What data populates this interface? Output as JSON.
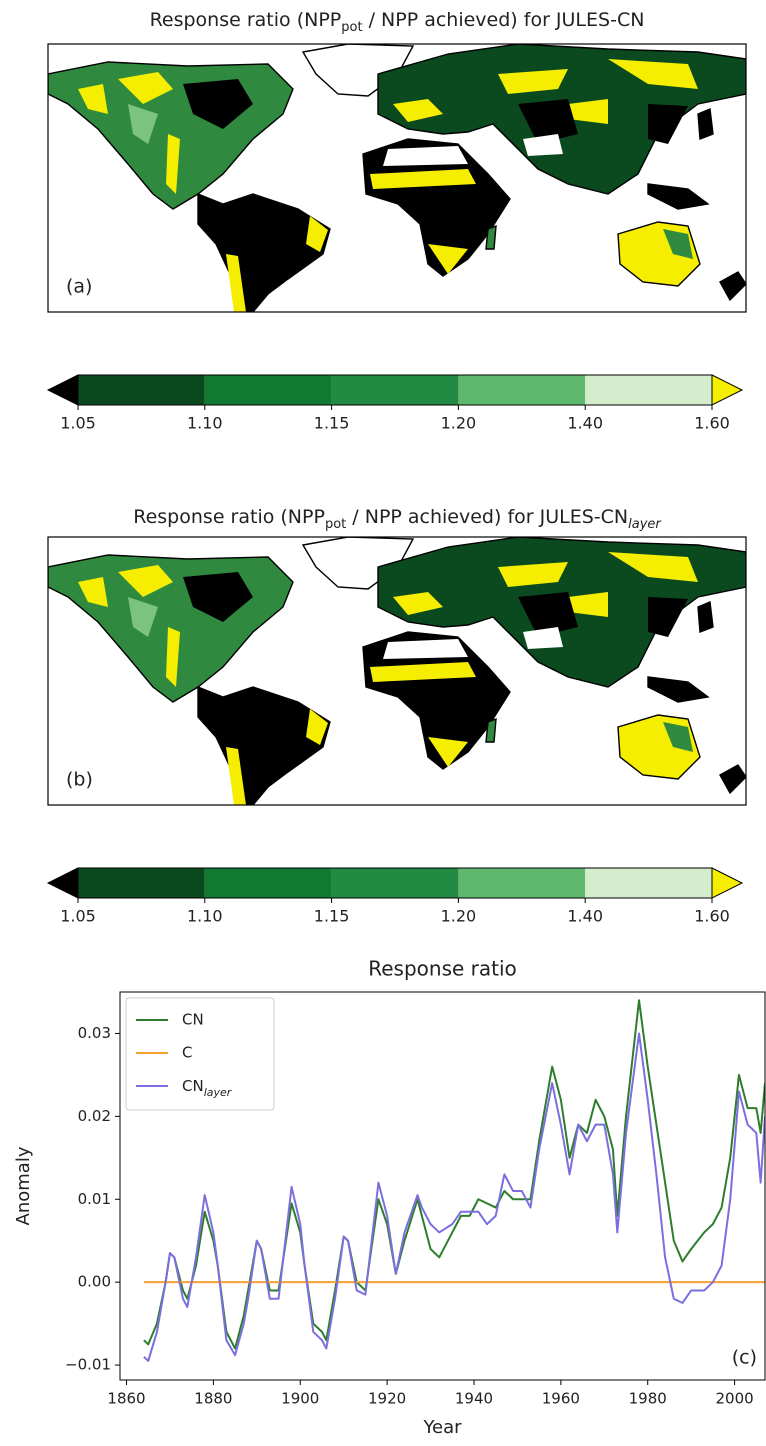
{
  "chart_data": [
    {
      "type": "map",
      "title": [
        "Response ratio (NPP",
        "pot",
        " / NPP achieved) for JULES-CN"
      ],
      "label": "(a)"
    },
    {
      "type": "colorbar",
      "ticks": [
        1.05,
        {
          "value": 1.1,
          "label": "1.10"
        },
        1.15,
        {
          "value": 1.2,
          "label": "1.20"
        },
        {
          "value": 1.4,
          "label": "1.40"
        },
        {
          "value": 1.6,
          "label": "1.60"
        }
      ],
      "colors": [
        "#0b4a1f",
        "#107a32",
        "#238a43",
        "#5fb96c",
        "#d3edcd"
      ],
      "under": "#000000",
      "over": "#f5ee00"
    },
    {
      "type": "map",
      "title": [
        "Response ratio (NPP",
        "pot",
        " / NPP achieved) for JULES-CN",
        "layer"
      ],
      "label": "(b)"
    },
    {
      "type": "colorbar",
      "ticks": [
        1.05,
        {
          "value": 1.1,
          "label": "1.10"
        },
        1.15,
        {
          "value": 1.2,
          "label": "1.20"
        },
        {
          "value": 1.4,
          "label": "1.40"
        },
        {
          "value": 1.6,
          "label": "1.60"
        }
      ],
      "colors": [
        "#0b4a1f",
        "#107a32",
        "#238a43",
        "#5fb96c",
        "#d3edcd"
      ],
      "under": "#000000",
      "over": "#f5ee00"
    },
    {
      "type": "line",
      "title": "Response ratio",
      "xlabel": "Year",
      "ylabel": "Anomaly",
      "annotation": "(c)",
      "legend": "upper left",
      "xlim": [
        1858.5,
        2007
      ],
      "xticks": [
        1860,
        1880,
        1900,
        1920,
        1940,
        1960,
        1980,
        2000
      ],
      "ylim": [
        -0.0118,
        0.035
      ],
      "yticks": [
        {
          "value": -0.01,
          "label": "−0.01"
        },
        {
          "value": 0,
          "label": "0.00"
        },
        0.01,
        0.02,
        0.03
      ],
      "x": [
        1864,
        1865,
        1867,
        1869,
        1870,
        1871,
        1873,
        1874,
        1876,
        1878,
        1880,
        1881,
        1883,
        1885,
        1887,
        1888,
        1890,
        1891,
        1893,
        1895,
        1898,
        1900,
        1901,
        1903,
        1905,
        1906,
        1908,
        1910,
        1911,
        1913,
        1915,
        1918,
        1920,
        1922,
        1924,
        1927,
        1928,
        1930,
        1932,
        1935,
        1937,
        1939,
        1941,
        1943,
        1945,
        1947,
        1949,
        1951,
        1953,
        1955,
        1958,
        1960,
        1962,
        1964,
        1966,
        1968,
        1970,
        1972,
        1973,
        1975,
        1978,
        1980,
        1982,
        1984,
        1986,
        1988,
        1990,
        1993,
        1995,
        1997,
        1999,
        2001,
        2003,
        2005,
        2006,
        2007
      ],
      "series": [
        {
          "name": "CN",
          "color": "#2e7d2e",
          "values": [
            -0.007,
            -0.0075,
            -0.005,
            0,
            0.0035,
            0.003,
            -0.001,
            -0.002,
            0.002,
            0.0085,
            0.005,
            0.002,
            -0.006,
            -0.008,
            -0.004,
            -0.001,
            0.005,
            0.004,
            -0.001,
            -0.001,
            0.0095,
            0.006,
            0.002,
            -0.005,
            -0.006,
            -0.007,
            -0.001,
            0.0055,
            0.005,
            0,
            -0.001,
            0.01,
            0.007,
            0.001,
            0.005,
            0.01,
            0.008,
            0.004,
            0.003,
            0.006,
            0.008,
            0.008,
            0.01,
            0.0095,
            0.009,
            0.011,
            0.01,
            0.01,
            0.01,
            0.017,
            0.026,
            0.022,
            0.015,
            0.019,
            0.018,
            0.022,
            0.02,
            0.016,
            0.008,
            0.02,
            0.034,
            0.026,
            0.019,
            0.012,
            0.005,
            0.0025,
            0.004,
            0.006,
            0.007,
            0.009,
            0.015,
            0.025,
            0.021,
            0.021,
            0.018,
            0.024
          ]
        },
        {
          "name": "C",
          "color": "#f5a030",
          "x": [
            1864,
            2007
          ],
          "values": [
            0,
            0
          ]
        },
        {
          "name": [
            "CN",
            "layer"
          ],
          "color": "#7b6fe0",
          "values": [
            -0.009,
            -0.0095,
            -0.006,
            0,
            0.0035,
            0.003,
            -0.002,
            -0.003,
            0.003,
            0.0105,
            0.006,
            0.002,
            -0.007,
            -0.0088,
            -0.005,
            -0.002,
            0.005,
            0.004,
            -0.002,
            -0.002,
            0.0115,
            0.007,
            0.002,
            -0.006,
            -0.007,
            -0.008,
            -0.002,
            0.0055,
            0.005,
            -0.001,
            -0.0015,
            0.012,
            0.008,
            0.001,
            0.006,
            0.0105,
            0.009,
            0.007,
            0.006,
            0.007,
            0.0085,
            0.0085,
            0.0085,
            0.007,
            0.008,
            0.013,
            0.011,
            0.011,
            0.009,
            0.016,
            0.024,
            0.019,
            0.013,
            0.019,
            0.017,
            0.019,
            0.019,
            0.013,
            0.006,
            0.018,
            0.03,
            0.022,
            0.013,
            0.003,
            -0.002,
            -0.0025,
            -0.001,
            -0.001,
            0,
            0.002,
            0.01,
            0.023,
            0.019,
            0.018,
            0.012,
            0.02
          ]
        }
      ]
    }
  ]
}
